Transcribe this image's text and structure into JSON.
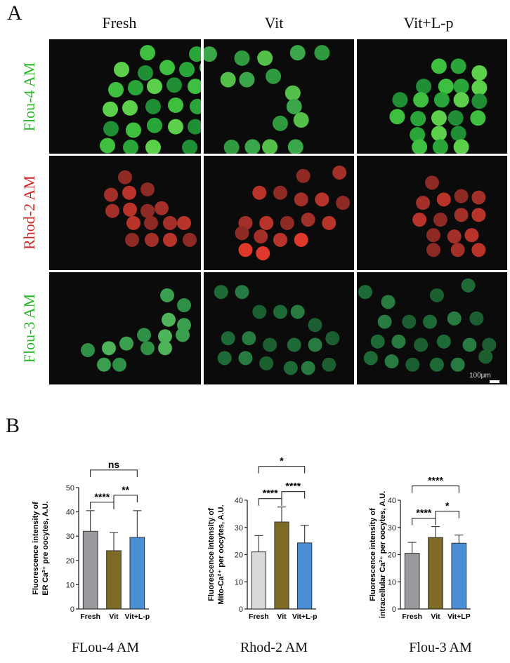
{
  "panel_a": {
    "letter": "A",
    "columns": [
      "Fresh",
      "Vit",
      "Vit+L-p"
    ],
    "rows": [
      {
        "label": "Flou-4 AM",
        "color": "#2bb52b"
      },
      {
        "label": "Rhod-2 AM",
        "color": "#cc2a2a"
      },
      {
        "label": "Flou-3 AM",
        "color": "#2bb52b"
      }
    ],
    "scale_text": "100μm"
  },
  "panel_b": {
    "letter": "B",
    "captions": [
      "FLou-4 AM",
      "Rhod-2 AM",
      "Flou-3 AM"
    ]
  },
  "chart_data": [
    {
      "type": "bar",
      "categories": [
        "Fresh",
        "Vit",
        "Vit+L-p"
      ],
      "values": [
        32,
        24,
        29.5
      ],
      "errors": [
        8.5,
        7.5,
        11
      ],
      "ylabel_line1": "Fluorescence intensity of",
      "ylabel_line2": "ER Ca²⁺ pre oocytes, A.U.",
      "ylim": [
        0,
        50
      ],
      "yticks": [
        0,
        10,
        20,
        30,
        40,
        50
      ],
      "colors": [
        "#9a9a9e",
        "#7d6a24",
        "#4a8fd6"
      ],
      "significance": [
        {
          "from": 0,
          "to": 1,
          "label": "****"
        },
        {
          "from": 1,
          "to": 2,
          "label": "**"
        },
        {
          "from": 0,
          "to": 2,
          "label": "ns"
        }
      ]
    },
    {
      "type": "bar",
      "categories": [
        "Fresh",
        "Vit",
        "Vit+L-p"
      ],
      "values": [
        21,
        32,
        24.3
      ],
      "errors": [
        6,
        5.5,
        6.5
      ],
      "ylabel_line1": "Fluorescence intensity of",
      "ylabel_line2": "Mito-Ca²⁺ per oocytes, A.U.",
      "ylim": [
        0,
        40
      ],
      "yticks": [
        0,
        10,
        20,
        30,
        40
      ],
      "colors": [
        "#d9d9d9",
        "#7d6a24",
        "#4a8fd6"
      ],
      "significance": [
        {
          "from": 0,
          "to": 1,
          "label": "****"
        },
        {
          "from": 1,
          "to": 2,
          "label": "****"
        },
        {
          "from": 0,
          "to": 2,
          "label": "*"
        }
      ]
    },
    {
      "type": "bar",
      "categories": [
        "Fresh",
        "Vit",
        "Vit+LP"
      ],
      "values": [
        20.5,
        26.3,
        24.2
      ],
      "errors": [
        4,
        4,
        3
      ],
      "ylabel_line1": "Fluorescence intensity of",
      "ylabel_line2": "intracellular Ca²⁺ per oocytes, A.U.",
      "ylim": [
        0,
        40
      ],
      "yticks": [
        0,
        10,
        20,
        30,
        40
      ],
      "colors": [
        "#9a9a9e",
        "#7d6a24",
        "#4a8fd6"
      ],
      "significance": [
        {
          "from": 0,
          "to": 1,
          "label": "****"
        },
        {
          "from": 1,
          "to": 2,
          "label": "*"
        },
        {
          "from": 0,
          "to": 2,
          "label": "****"
        }
      ]
    }
  ]
}
